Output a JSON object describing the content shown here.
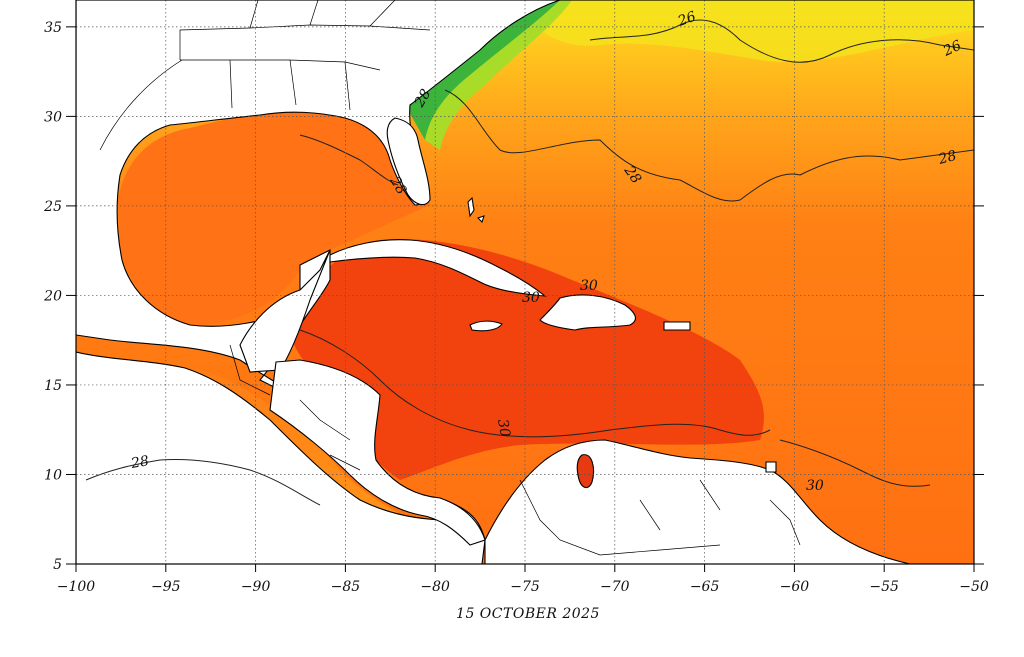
{
  "map": {
    "date_caption": "15 OCTOBER 2025",
    "lon_ticks": [
      "−100",
      "−95",
      "−90",
      "−85",
      "−80",
      "−75",
      "−70",
      "−65",
      "−60",
      "−55",
      "−50"
    ],
    "lat_ticks": [
      "35",
      "30",
      "25",
      "20",
      "15",
      "10",
      "5"
    ],
    "lon_range": [
      -100,
      -50
    ],
    "lat_range": [
      5,
      36.5
    ],
    "contour_labels": [
      "26",
      "26",
      "28",
      "28",
      "28",
      "28",
      "28",
      "30",
      "30",
      "30",
      "30"
    ],
    "colors": {
      "ocean_warm": "#ff6a10",
      "ocean_hot": "#f03a0c",
      "ocean_mid": "#ff9418",
      "ocean_cool": "#ffc020",
      "ocean_coolest": "#f0f020",
      "shelf_green": "#2fb02f",
      "land": "#ffffff",
      "coast": "#000000",
      "grid": "#555555"
    }
  }
}
